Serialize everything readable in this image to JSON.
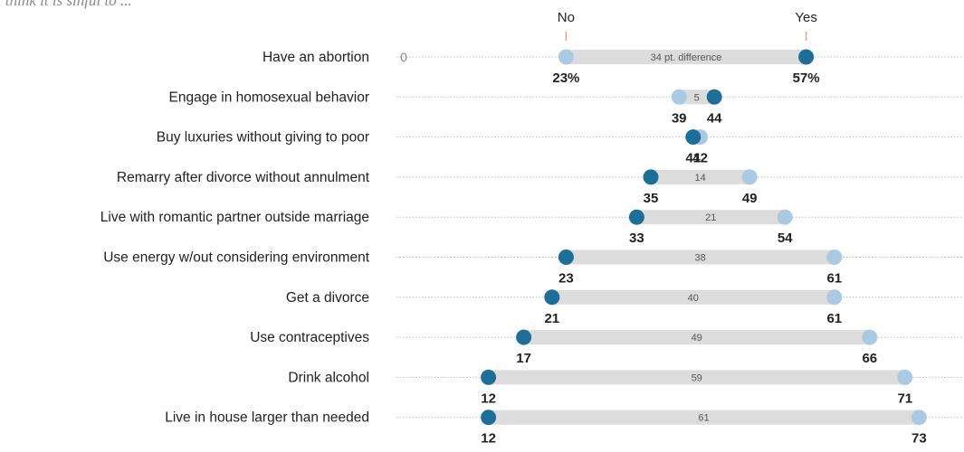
{
  "intro": "I think it is sinful to ...",
  "chart_data": {
    "type": "dot-plot",
    "title": "I think it is sinful to ...",
    "legend": {
      "no": "No",
      "yes": "Yes"
    },
    "colors": {
      "no": "#aac9e2",
      "yes": "#1d6f9a",
      "bar": "#dcdcdc",
      "grid": "#bbbbbb"
    },
    "zero_label": "0",
    "x_domain": [
      0,
      80
    ],
    "categories": [
      {
        "label": "Have an abortion",
        "no": 23,
        "yes": 57,
        "no_label": "23%",
        "yes_label": "57%",
        "diff_label": "34 pt. difference"
      },
      {
        "label": "Engage in homosexual behavior",
        "no": 39,
        "yes": 44,
        "no_label": "39",
        "yes_label": "44",
        "diff_label": "5"
      },
      {
        "label": "Buy luxuries without giving to poor",
        "no": 42,
        "yes": 41,
        "no_label": "42",
        "yes_label": "41",
        "diff_label": ""
      },
      {
        "label": "Remarry after divorce without annulment",
        "no": 49,
        "yes": 35,
        "no_label": "49",
        "yes_label": "35",
        "diff_label": "14"
      },
      {
        "label": "Live with romantic partner outside marriage",
        "no": 54,
        "yes": 33,
        "no_label": "54",
        "yes_label": "33",
        "diff_label": "21"
      },
      {
        "label": "Use energy w/out considering environment",
        "no": 61,
        "yes": 23,
        "no_label": "61",
        "yes_label": "23",
        "diff_label": "38"
      },
      {
        "label": "Get a divorce",
        "no": 61,
        "yes": 21,
        "no_label": "61",
        "yes_label": "21",
        "diff_label": "40"
      },
      {
        "label": "Use contraceptives",
        "no": 66,
        "yes": 17,
        "no_label": "66",
        "yes_label": "17",
        "diff_label": "49"
      },
      {
        "label": "Drink alcohol",
        "no": 71,
        "yes": 12,
        "no_label": "71",
        "yes_label": "12",
        "diff_label": "59"
      },
      {
        "label": "Live in house larger than needed",
        "no": 73,
        "yes": 12,
        "no_label": "73",
        "yes_label": "12",
        "diff_label": "61"
      }
    ]
  }
}
